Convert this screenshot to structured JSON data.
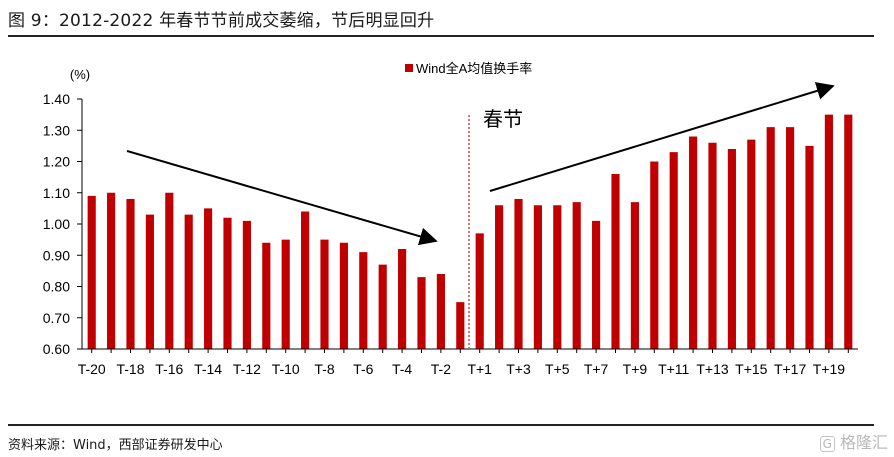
{
  "figure": {
    "title": "图 9：2012-2022 年春节节前成交萎缩，节后明显回升",
    "source": "资料来源：Wind，西部证券研发中心",
    "watermark": "格隆汇"
  },
  "chart_data": {
    "type": "bar",
    "title": "",
    "xlabel": "",
    "ylabel": "(%)",
    "ylim": [
      0.6,
      1.4
    ],
    "yticks": [
      "0.60",
      "0.70",
      "0.80",
      "0.90",
      "1.00",
      "1.10",
      "1.20",
      "1.30",
      "1.40"
    ],
    "grid": false,
    "legend_position": "top",
    "bar_color": "#c00000",
    "annotation": "春节",
    "categories": [
      "T-20",
      "T-19",
      "T-18",
      "T-17",
      "T-16",
      "T-15",
      "T-14",
      "T-13",
      "T-12",
      "T-11",
      "T-10",
      "T-9",
      "T-8",
      "T-7",
      "T-6",
      "T-5",
      "T-4",
      "T-3",
      "T-2",
      "T-1",
      "T+1",
      "T+2",
      "T+3",
      "T+4",
      "T+5",
      "T+6",
      "T+7",
      "T+8",
      "T+9",
      "T+10",
      "T+11",
      "T+12",
      "T+13",
      "T+14",
      "T+15",
      "T+16",
      "T+17",
      "T+18",
      "T+19",
      "T+20"
    ],
    "tick_labels": [
      "T-20",
      "T-18",
      "T-16",
      "T-14",
      "T-12",
      "T-10",
      "T-8",
      "T-6",
      "T-4",
      "T-2",
      "T+1",
      "T+3",
      "T+5",
      "T+7",
      "T+9",
      "T+11",
      "T+13",
      "T+15",
      "T+17",
      "T+19"
    ],
    "series": [
      {
        "name": "Wind全A均值换手率",
        "values": [
          1.09,
          1.1,
          1.08,
          1.03,
          1.1,
          1.03,
          1.05,
          1.02,
          1.01,
          0.94,
          0.95,
          1.04,
          0.95,
          0.94,
          0.91,
          0.87,
          0.92,
          0.83,
          0.84,
          0.75,
          0.97,
          1.06,
          1.08,
          1.06,
          1.06,
          1.07,
          1.01,
          1.16,
          1.07,
          1.2,
          1.23,
          1.28,
          1.26,
          1.24,
          1.27,
          1.31,
          1.31,
          1.25,
          1.35,
          1.35
        ]
      }
    ]
  }
}
